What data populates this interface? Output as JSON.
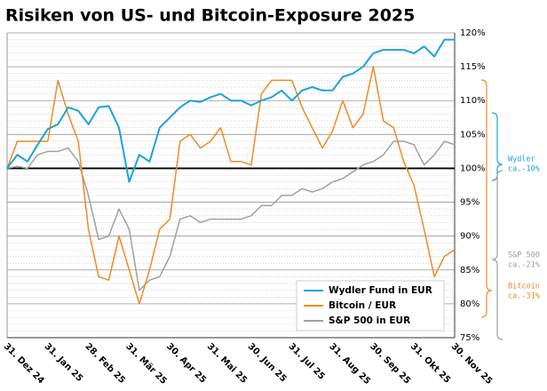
{
  "chart_data": {
    "type": "line",
    "title": "Risiken von US- und Bitcoin-Exposure 2025",
    "categories": [
      "31. Dez 24",
      null,
      null,
      null,
      "31. Jan 25",
      null,
      null,
      null,
      "28. Feb 25",
      null,
      null,
      null,
      "31. Mär 25",
      null,
      null,
      null,
      "30. Apr 25",
      null,
      null,
      null,
      "31. Mai 25",
      null,
      null,
      null,
      "30. Jun 25",
      null,
      null,
      null,
      "31. Jul 25",
      null,
      null,
      null,
      "31. Aug 25",
      null,
      null,
      null,
      "30. Sep 25",
      null,
      null,
      null,
      "31. Okt 25",
      null,
      null,
      null,
      "30. Nov 25"
    ],
    "series": [
      {
        "name": "Wydler Fund in EUR",
        "color": "#1aa3dc",
        "values": [
          100,
          102,
          101,
          103.5,
          105.8,
          106.5,
          109,
          108.5,
          106.5,
          109,
          109.2,
          106,
          98,
          102,
          101,
          106,
          107.5,
          109,
          110,
          109.8,
          110.5,
          111,
          110,
          110,
          109.3,
          110,
          110.5,
          111.5,
          110,
          111.5,
          112,
          111.5,
          111.5,
          113.5,
          114,
          115,
          117,
          117.5,
          117.5,
          117.5,
          117,
          118,
          116.5,
          119,
          119
        ]
      },
      {
        "name": "Bitcoin / EUR",
        "color": "#f08a24",
        "values": [
          100,
          104,
          104,
          104,
          104,
          113,
          108,
          104,
          91,
          84,
          83.5,
          90,
          85,
          80,
          85,
          91,
          92.5,
          104,
          105,
          103,
          104,
          106,
          101,
          101,
          100.5,
          111,
          113,
          113,
          113,
          109,
          106,
          103,
          105.5,
          110,
          106,
          108,
          115,
          107,
          106,
          101,
          97.5,
          91,
          84,
          87,
          88
        ]
      },
      {
        "name": "S&P 500 in EUR",
        "color": "#a0a0a0",
        "values": [
          100,
          100.3,
          100,
          102,
          102.5,
          102.5,
          103,
          101,
          96,
          89.5,
          90,
          94,
          91,
          82,
          83.5,
          84,
          87,
          92.5,
          93,
          92,
          92.5,
          92.5,
          92.5,
          92.5,
          93,
          94.5,
          94.5,
          96,
          96,
          97,
          96.5,
          97,
          98,
          98.5,
          99.5,
          100.5,
          101,
          102,
          104,
          104,
          103.5,
          100.5,
          102,
          104,
          103.5
        ]
      }
    ],
    "ylim": [
      75,
      120
    ],
    "yticks": [
      {
        "value": 75,
        "label": "75%"
      },
      {
        "value": 80,
        "label": "80%"
      },
      {
        "value": 85,
        "label": "85%"
      },
      {
        "value": 90,
        "label": "90%"
      },
      {
        "value": 95,
        "label": "95%"
      },
      {
        "value": 100,
        "label": "100%"
      },
      {
        "value": 105,
        "label": "105%"
      },
      {
        "value": 110,
        "label": "110%"
      },
      {
        "value": 115,
        "label": "115%"
      },
      {
        "value": 120,
        "label": "120%"
      }
    ],
    "reference_line": 100,
    "grid": true,
    "minor_grid": true,
    "legend": "lower right",
    "annotations": [
      {
        "lines": [
          "Wydler",
          "ca.-10%"
        ],
        "color": "#1aa3dc"
      },
      {
        "lines": [
          "S&P 500",
          "ca.-21%"
        ],
        "color": "#a0a0a0"
      },
      {
        "lines": [
          "Bitcoin",
          "ca.-31%"
        ],
        "color": "#f08a24"
      }
    ]
  }
}
